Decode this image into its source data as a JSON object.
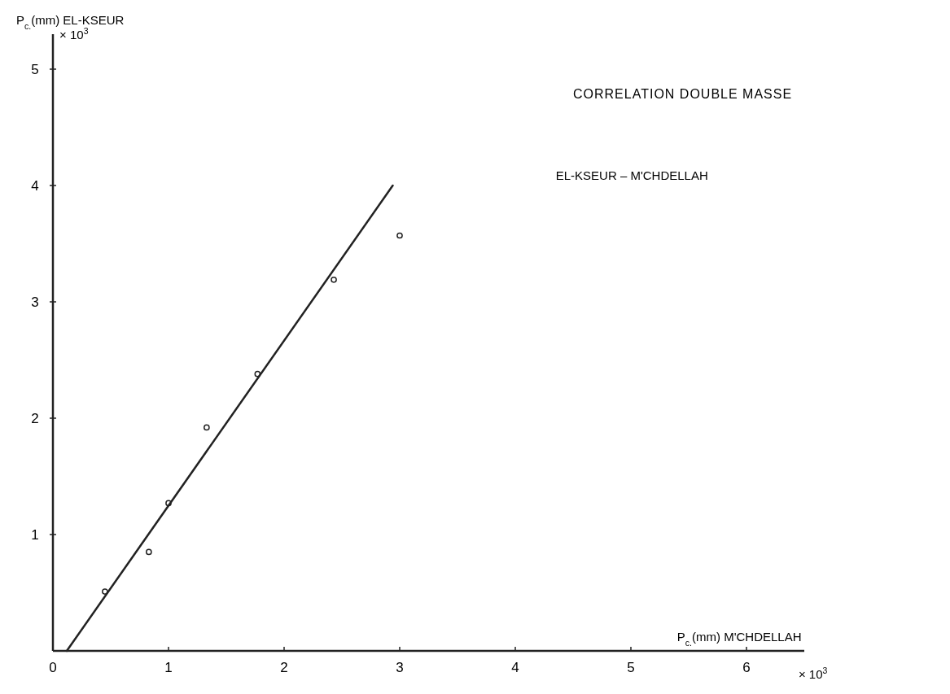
{
  "chart_data": {
    "type": "scatter",
    "title": "CORRELATION DOUBLE MASSE",
    "subtitle": "EL-KSEUR – M'CHDELLAH",
    "xlabel": "P$_{c.}$(mm) M'CHDELLAH",
    "ylabel": "P$_{c.}$(mm) EL-KSEUR",
    "annotations": [
      "× 10$^{3}$",
      "× 10$^{3}$"
    ],
    "series": [
      {
        "marker": "circle",
        "color": "#222222",
        "x": [
          0.45,
          0.83,
          1.0,
          1.33,
          1.77,
          2.43,
          3.0
        ],
        "values": [
          0.51,
          0.85,
          1.27,
          1.92,
          2.38,
          3.19,
          3.57
        ]
      },
      {
        "type": "line",
        "marker": "none",
        "color": "#222222",
        "x": [
          0.12,
          2.94
        ],
        "values": [
          0,
          4
        ]
      }
    ],
    "xlim": [
      0,
      6.5
    ],
    "xticks": [
      0,
      1,
      2,
      3,
      4,
      5,
      6
    ],
    "ylim": [
      0,
      5.3
    ],
    "yticks": [
      1,
      2,
      3,
      4,
      5
    ],
    "line_style": "solid"
  }
}
